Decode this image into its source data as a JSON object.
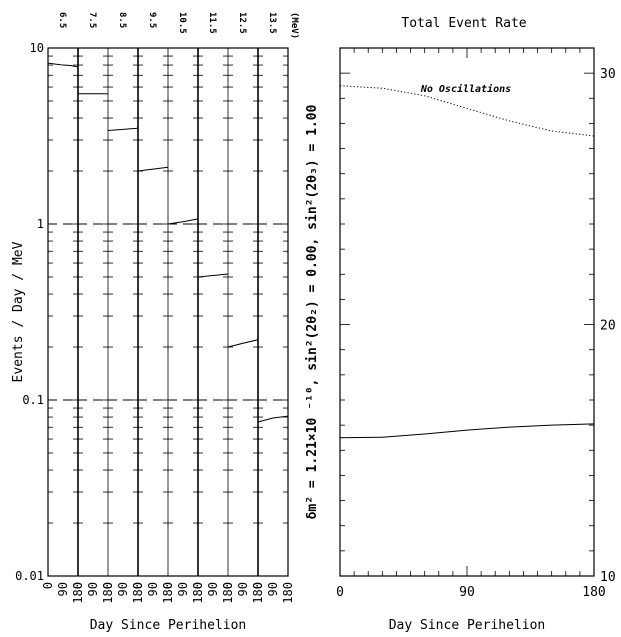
{
  "chart_data": [
    {
      "type": "line",
      "panel": "left",
      "ylabel": "Events / Day / MeV",
      "xlabel": "Day Since Perihelion",
      "yscale": "log",
      "ylim": [
        0.01,
        10
      ],
      "yticks": [
        "10",
        "1",
        "0.1",
        "0.01"
      ],
      "dashed_grid_y": [
        1,
        0.1
      ],
      "energy_unit": "(MeV)",
      "xlim_per_bin": [
        0,
        180
      ],
      "x_tick_labels": [
        "0",
        "90",
        "180"
      ],
      "bins": [
        {
          "energy": "6.5",
          "x": [
            0,
            45,
            90,
            135,
            180
          ],
          "y": [
            8.2,
            8.1,
            8.0,
            7.95,
            7.8
          ]
        },
        {
          "energy": "7.5",
          "x": [
            0,
            180
          ],
          "y": [
            5.5,
            5.5
          ]
        },
        {
          "energy": "8.5",
          "x": [
            0,
            180
          ],
          "y": [
            3.4,
            3.5
          ]
        },
        {
          "energy": "9.5",
          "x": [
            0,
            90,
            180
          ],
          "y": [
            2.0,
            2.05,
            2.1
          ]
        },
        {
          "energy": "10.5",
          "x": [
            0,
            90,
            180
          ],
          "y": [
            1.0,
            1.03,
            1.07
          ]
        },
        {
          "energy": "11.5",
          "x": [
            0,
            90,
            180
          ],
          "y": [
            0.5,
            0.51,
            0.52
          ]
        },
        {
          "energy": "12.5",
          "x": [
            0,
            90,
            180
          ],
          "y": [
            0.2,
            0.21,
            0.22
          ]
        },
        {
          "energy": "13.5",
          "x": [
            0,
            90,
            180
          ],
          "y": [
            0.075,
            0.079,
            0.081
          ]
        }
      ]
    },
    {
      "type": "line",
      "panel": "right",
      "title": "Total Event Rate",
      "xlabel": "Day Since Perihelion",
      "xlim": [
        0,
        180
      ],
      "ylim": [
        10,
        31
      ],
      "x_tick_labels": [
        "0",
        "90",
        "180"
      ],
      "y_tick_labels": [
        "30",
        "20",
        "10"
      ],
      "y_tick_values": [
        30,
        20,
        10
      ],
      "series": [
        {
          "name": "No Oscillations",
          "style": "dotted",
          "x": [
            0,
            30,
            60,
            90,
            120,
            150,
            180
          ],
          "y": [
            29.5,
            29.4,
            29.1,
            28.6,
            28.1,
            27.7,
            27.5
          ]
        },
        {
          "style": "solid",
          "x": [
            0,
            30,
            60,
            90,
            120,
            150,
            180
          ],
          "y": [
            15.5,
            15.52,
            15.65,
            15.8,
            15.92,
            16.0,
            16.05
          ]
        }
      ],
      "side_label": "δm² = 1.21×10 ⁻¹⁰, sin²(2θ₂) = 0.00, sin²(2θ₃) = 1.00"
    }
  ]
}
